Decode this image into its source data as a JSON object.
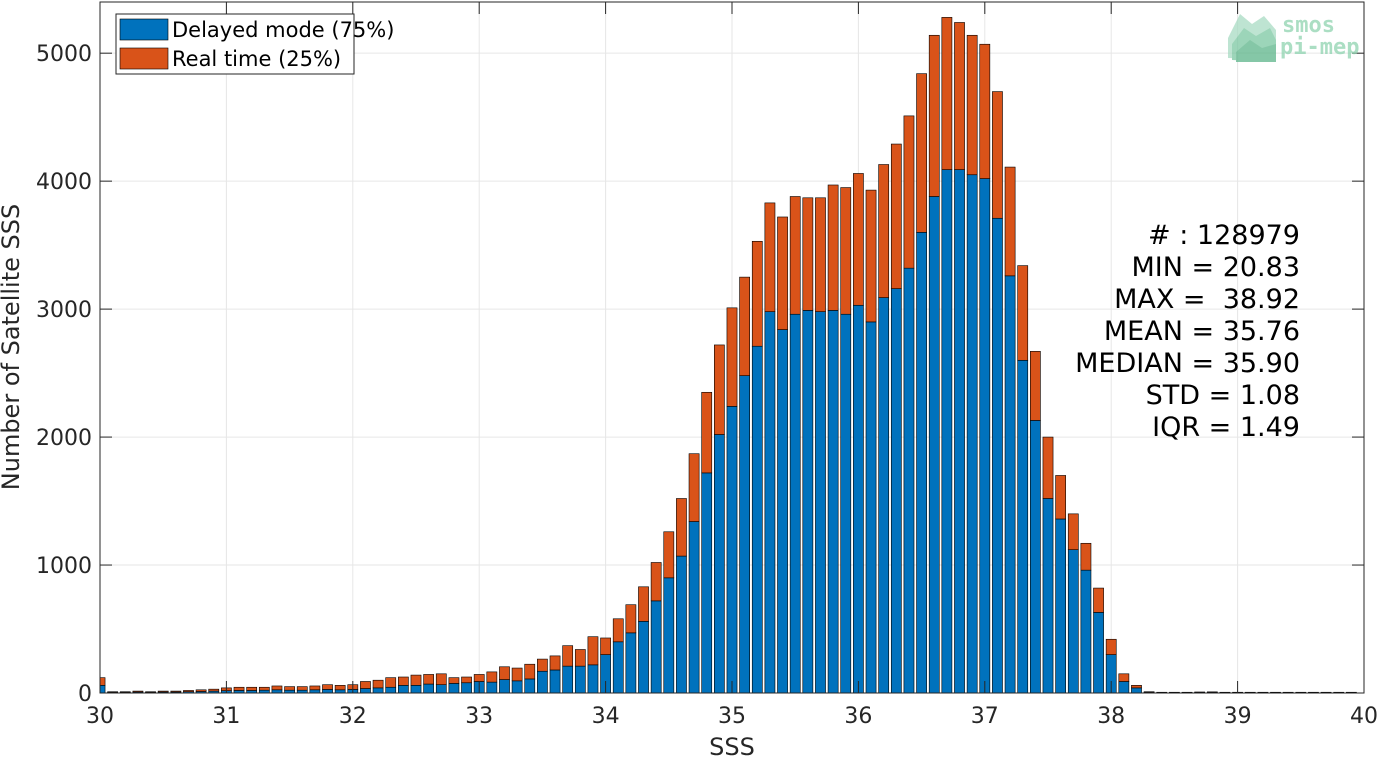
{
  "chart_data": {
    "type": "bar",
    "stacked": true,
    "xlabel": "SSS",
    "ylabel": "Number of Satellite SSS",
    "xlim": [
      30,
      40
    ],
    "ylim": [
      0,
      5400
    ],
    "xticks": [
      "30",
      "31",
      "32",
      "33",
      "34",
      "35",
      "36",
      "37",
      "38",
      "39",
      "40"
    ],
    "yticks": [
      "0",
      "1000",
      "2000",
      "3000",
      "4000",
      "5000"
    ],
    "grid": true,
    "legend_position": "top-left",
    "bin_start": 30.0,
    "bin_width": 0.1,
    "series": [
      {
        "name": "Delayed mode (75%)",
        "color": "#0072BD",
        "values": [
          60,
          5,
          5,
          8,
          5,
          8,
          8,
          10,
          12,
          15,
          18,
          20,
          20,
          22,
          25,
          22,
          22,
          25,
          28,
          25,
          28,
          35,
          40,
          45,
          60,
          60,
          70,
          65,
          75,
          80,
          90,
          85,
          105,
          95,
          110,
          170,
          180,
          210,
          210,
          220,
          300,
          400,
          470,
          560,
          720,
          900,
          1070,
          1340,
          1720,
          2020,
          2240,
          2480,
          2710,
          2980,
          2840,
          2960,
          2990,
          2980,
          2990,
          2960,
          3030,
          2900,
          3090,
          3160,
          3320,
          3600,
          3880,
          4090,
          4090,
          4050,
          4020,
          3710,
          3260,
          2600,
          2130,
          1520,
          1360,
          1120,
          960,
          630,
          300,
          90,
          40,
          5,
          3,
          3,
          3,
          5,
          5,
          3,
          3,
          3,
          3,
          3,
          3,
          3,
          3,
          3,
          3,
          3
        ]
      },
      {
        "name": "Real time (25%)",
        "color": "#D95319",
        "values": [
          60,
          5,
          5,
          7,
          5,
          7,
          7,
          10,
          13,
          15,
          22,
          25,
          25,
          23,
          30,
          28,
          28,
          30,
          37,
          35,
          37,
          55,
          60,
          75,
          65,
          80,
          75,
          85,
          45,
          45,
          55,
          80,
          100,
          100,
          115,
          95,
          110,
          160,
          130,
          220,
          130,
          180,
          220,
          270,
          300,
          360,
          450,
          530,
          630,
          700,
          770,
          770,
          820,
          850,
          880,
          920,
          880,
          890,
          980,
          990,
          1030,
          1030,
          1040,
          1130,
          1190,
          1240,
          1260,
          1190,
          1150,
          1090,
          1050,
          990,
          850,
          740,
          540,
          480,
          340,
          280,
          210,
          190,
          120,
          60,
          20,
          5,
          3,
          3,
          3,
          3,
          4,
          3,
          3,
          3,
          3,
          3,
          3,
          3,
          3,
          3,
          3,
          3
        ]
      }
    ],
    "annotations": [
      "# : 128979",
      "MIN = 20.83",
      "MAX =  38.92",
      "MEAN = 35.76",
      "MEDIAN = 35.90",
      "STD = 1.08",
      "IQR = 1.49"
    ]
  },
  "logo": {
    "line1": "smos",
    "line2": "pi-mep"
  }
}
